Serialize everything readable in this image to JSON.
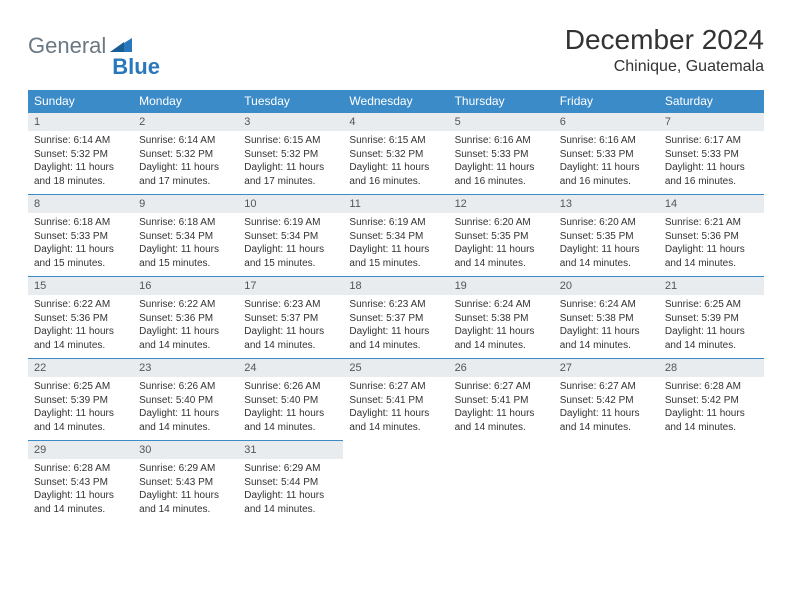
{
  "logo": {
    "general": "General",
    "blue": "Blue"
  },
  "title": "December 2024",
  "location": "Chinique, Guatemala",
  "colors": {
    "header_bg": "#3b8bc9",
    "header_text": "#ffffff",
    "daynum_bg": "#e9ecef",
    "border": "#3b8bc9",
    "logo_gray": "#6b7882",
    "logo_blue": "#2978bd"
  },
  "day_names": [
    "Sunday",
    "Monday",
    "Tuesday",
    "Wednesday",
    "Thursday",
    "Friday",
    "Saturday"
  ],
  "weeks": [
    [
      {
        "n": "1",
        "sr": "Sunrise: 6:14 AM",
        "ss": "Sunset: 5:32 PM",
        "d1": "Daylight: 11 hours",
        "d2": "and 18 minutes."
      },
      {
        "n": "2",
        "sr": "Sunrise: 6:14 AM",
        "ss": "Sunset: 5:32 PM",
        "d1": "Daylight: 11 hours",
        "d2": "and 17 minutes."
      },
      {
        "n": "3",
        "sr": "Sunrise: 6:15 AM",
        "ss": "Sunset: 5:32 PM",
        "d1": "Daylight: 11 hours",
        "d2": "and 17 minutes."
      },
      {
        "n": "4",
        "sr": "Sunrise: 6:15 AM",
        "ss": "Sunset: 5:32 PM",
        "d1": "Daylight: 11 hours",
        "d2": "and 16 minutes."
      },
      {
        "n": "5",
        "sr": "Sunrise: 6:16 AM",
        "ss": "Sunset: 5:33 PM",
        "d1": "Daylight: 11 hours",
        "d2": "and 16 minutes."
      },
      {
        "n": "6",
        "sr": "Sunrise: 6:16 AM",
        "ss": "Sunset: 5:33 PM",
        "d1": "Daylight: 11 hours",
        "d2": "and 16 minutes."
      },
      {
        "n": "7",
        "sr": "Sunrise: 6:17 AM",
        "ss": "Sunset: 5:33 PM",
        "d1": "Daylight: 11 hours",
        "d2": "and 16 minutes."
      }
    ],
    [
      {
        "n": "8",
        "sr": "Sunrise: 6:18 AM",
        "ss": "Sunset: 5:33 PM",
        "d1": "Daylight: 11 hours",
        "d2": "and 15 minutes."
      },
      {
        "n": "9",
        "sr": "Sunrise: 6:18 AM",
        "ss": "Sunset: 5:34 PM",
        "d1": "Daylight: 11 hours",
        "d2": "and 15 minutes."
      },
      {
        "n": "10",
        "sr": "Sunrise: 6:19 AM",
        "ss": "Sunset: 5:34 PM",
        "d1": "Daylight: 11 hours",
        "d2": "and 15 minutes."
      },
      {
        "n": "11",
        "sr": "Sunrise: 6:19 AM",
        "ss": "Sunset: 5:34 PM",
        "d1": "Daylight: 11 hours",
        "d2": "and 15 minutes."
      },
      {
        "n": "12",
        "sr": "Sunrise: 6:20 AM",
        "ss": "Sunset: 5:35 PM",
        "d1": "Daylight: 11 hours",
        "d2": "and 14 minutes."
      },
      {
        "n": "13",
        "sr": "Sunrise: 6:20 AM",
        "ss": "Sunset: 5:35 PM",
        "d1": "Daylight: 11 hours",
        "d2": "and 14 minutes."
      },
      {
        "n": "14",
        "sr": "Sunrise: 6:21 AM",
        "ss": "Sunset: 5:36 PM",
        "d1": "Daylight: 11 hours",
        "d2": "and 14 minutes."
      }
    ],
    [
      {
        "n": "15",
        "sr": "Sunrise: 6:22 AM",
        "ss": "Sunset: 5:36 PM",
        "d1": "Daylight: 11 hours",
        "d2": "and 14 minutes."
      },
      {
        "n": "16",
        "sr": "Sunrise: 6:22 AM",
        "ss": "Sunset: 5:36 PM",
        "d1": "Daylight: 11 hours",
        "d2": "and 14 minutes."
      },
      {
        "n": "17",
        "sr": "Sunrise: 6:23 AM",
        "ss": "Sunset: 5:37 PM",
        "d1": "Daylight: 11 hours",
        "d2": "and 14 minutes."
      },
      {
        "n": "18",
        "sr": "Sunrise: 6:23 AM",
        "ss": "Sunset: 5:37 PM",
        "d1": "Daylight: 11 hours",
        "d2": "and 14 minutes."
      },
      {
        "n": "19",
        "sr": "Sunrise: 6:24 AM",
        "ss": "Sunset: 5:38 PM",
        "d1": "Daylight: 11 hours",
        "d2": "and 14 minutes."
      },
      {
        "n": "20",
        "sr": "Sunrise: 6:24 AM",
        "ss": "Sunset: 5:38 PM",
        "d1": "Daylight: 11 hours",
        "d2": "and 14 minutes."
      },
      {
        "n": "21",
        "sr": "Sunrise: 6:25 AM",
        "ss": "Sunset: 5:39 PM",
        "d1": "Daylight: 11 hours",
        "d2": "and 14 minutes."
      }
    ],
    [
      {
        "n": "22",
        "sr": "Sunrise: 6:25 AM",
        "ss": "Sunset: 5:39 PM",
        "d1": "Daylight: 11 hours",
        "d2": "and 14 minutes."
      },
      {
        "n": "23",
        "sr": "Sunrise: 6:26 AM",
        "ss": "Sunset: 5:40 PM",
        "d1": "Daylight: 11 hours",
        "d2": "and 14 minutes."
      },
      {
        "n": "24",
        "sr": "Sunrise: 6:26 AM",
        "ss": "Sunset: 5:40 PM",
        "d1": "Daylight: 11 hours",
        "d2": "and 14 minutes."
      },
      {
        "n": "25",
        "sr": "Sunrise: 6:27 AM",
        "ss": "Sunset: 5:41 PM",
        "d1": "Daylight: 11 hours",
        "d2": "and 14 minutes."
      },
      {
        "n": "26",
        "sr": "Sunrise: 6:27 AM",
        "ss": "Sunset: 5:41 PM",
        "d1": "Daylight: 11 hours",
        "d2": "and 14 minutes."
      },
      {
        "n": "27",
        "sr": "Sunrise: 6:27 AM",
        "ss": "Sunset: 5:42 PM",
        "d1": "Daylight: 11 hours",
        "d2": "and 14 minutes."
      },
      {
        "n": "28",
        "sr": "Sunrise: 6:28 AM",
        "ss": "Sunset: 5:42 PM",
        "d1": "Daylight: 11 hours",
        "d2": "and 14 minutes."
      }
    ],
    [
      {
        "n": "29",
        "sr": "Sunrise: 6:28 AM",
        "ss": "Sunset: 5:43 PM",
        "d1": "Daylight: 11 hours",
        "d2": "and 14 minutes."
      },
      {
        "n": "30",
        "sr": "Sunrise: 6:29 AM",
        "ss": "Sunset: 5:43 PM",
        "d1": "Daylight: 11 hours",
        "d2": "and 14 minutes."
      },
      {
        "n": "31",
        "sr": "Sunrise: 6:29 AM",
        "ss": "Sunset: 5:44 PM",
        "d1": "Daylight: 11 hours",
        "d2": "and 14 minutes."
      },
      null,
      null,
      null,
      null
    ]
  ]
}
